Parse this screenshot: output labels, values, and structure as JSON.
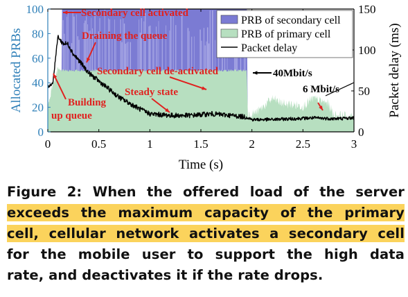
{
  "chart_data": {
    "type": "area",
    "x_label": "Time (s)",
    "y_left_label": "Allocated PRBs",
    "y_right_label": "Packet delay (ms)",
    "x_ticks": [
      "0",
      "0.5",
      "1",
      "1.5",
      "2",
      "2.5",
      "3"
    ],
    "y_left_ticks": [
      "0",
      "20",
      "40",
      "60",
      "80",
      "100"
    ],
    "y_right_ticks": [
      "0",
      "50",
      "100",
      "150"
    ],
    "xlim": [
      0,
      3
    ],
    "ylim_left": [
      0,
      100
    ],
    "ylim_right": [
      0,
      150
    ],
    "legend": {
      "position": "top-right",
      "entries": [
        {
          "label": "PRB of secondary cell",
          "color": "#7b7bd3"
        },
        {
          "label": "PRB of primary cell",
          "color": "#b7dfc0"
        },
        {
          "label": "Packet delay",
          "color": "#000000"
        }
      ]
    },
    "colors": {
      "secondary": "#7b7bd3",
      "primary": "#b7dfc0",
      "delay": "#000000",
      "annotation": "#e0211f",
      "left_axis": "#2e7fb8"
    },
    "annotations": {
      "activated": "Secondary cell activated",
      "draining": "Draining the queue",
      "deactivated": "Secondary cell de-activated",
      "building_1": "Building",
      "building_2": "up queue",
      "steady": "Steady state",
      "rate_40": "40Mbit/s",
      "rate_6": "6 Mbit/s"
    },
    "series": [
      {
        "name": "PRB of secondary cell",
        "axis": "left",
        "x": [
          0,
          0.13,
          0.14,
          1.95,
          1.96,
          3.0
        ],
        "values": [
          0,
          0,
          100,
          100,
          0,
          0
        ]
      },
      {
        "name": "PRB of primary cell",
        "axis": "left",
        "x": [
          0,
          0.05,
          0.1,
          0.2,
          0.5,
          1.0,
          1.5,
          1.9,
          1.95,
          1.96,
          2.05,
          2.2,
          2.3,
          2.5,
          2.6,
          2.75,
          2.8,
          3.0
        ],
        "values": [
          20,
          40,
          50,
          50,
          50,
          50,
          50,
          50,
          50,
          14,
          16,
          27,
          23,
          21,
          27,
          23,
          14,
          12
        ]
      },
      {
        "name": "Packet delay",
        "axis": "right",
        "x": [
          0,
          0.05,
          0.08,
          0.1,
          0.12,
          0.15,
          0.2,
          0.25,
          0.3,
          0.35,
          0.4,
          0.5,
          0.6,
          0.7,
          0.8,
          0.9,
          1.0,
          1.2,
          1.4,
          1.6,
          1.8,
          1.95,
          2.0,
          2.2,
          2.4,
          2.6,
          2.8,
          3.0
        ],
        "values": [
          55,
          60,
          95,
          117,
          112,
          108,
          107,
          95,
          88,
          80,
          72,
          62,
          52,
          42,
          35,
          28,
          22,
          20,
          20,
          22,
          20,
          18,
          15,
          15,
          16,
          17,
          16,
          17
        ]
      }
    ]
  },
  "caption": {
    "line1": "Figure 2: When the offered load of the server",
    "line2": "exceeds the maximum capacity of the primary",
    "line3": "cell, cellular network activates a secondary cell",
    "line4": "for the mobile user to support the high data",
    "line5": "rate, and deactivates it if the rate drops."
  }
}
